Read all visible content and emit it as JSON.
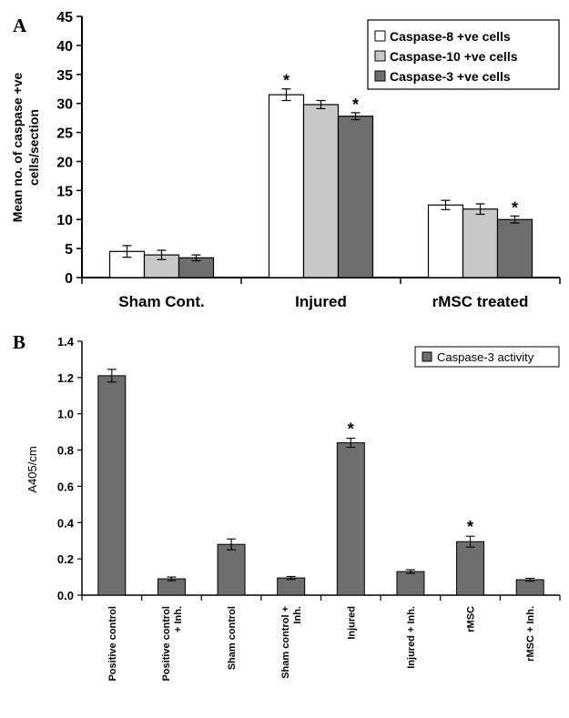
{
  "chart_data": [
    {
      "panel": "A",
      "type": "bar",
      "title": "",
      "ylabel": "Mean no. of caspase +ve cells/section",
      "ylabel_lines": [
        "Mean no. of caspase +ve",
        "cells/section"
      ],
      "xlabel": "",
      "ylim": [
        0,
        45
      ],
      "yticks": [
        "0",
        "5",
        "10",
        "15",
        "20",
        "25",
        "30",
        "35",
        "40",
        "45"
      ],
      "categories": [
        "Sham Cont.",
        "Injured",
        "rMSC treated"
      ],
      "legend_position": "top-right",
      "series": [
        {
          "name": "Caspase-8 +ve cells",
          "values": [
            4.5,
            31.5,
            12.5
          ],
          "errors": [
            1.0,
            1.0,
            0.8
          ],
          "color": "#ffffff"
        },
        {
          "name": "Caspase-10 +ve cells",
          "values": [
            3.9,
            29.8,
            11.8
          ],
          "errors": [
            0.8,
            0.7,
            0.9
          ],
          "color": "#c8c8c8"
        },
        {
          "name": "Caspase-3 +ve cells",
          "values": [
            3.4,
            27.8,
            10.0
          ],
          "errors": [
            0.5,
            0.6,
            0.6
          ],
          "color": "#6e6e6e"
        }
      ],
      "significance": [
        {
          "category": 1,
          "series": 0,
          "label": "*"
        },
        {
          "category": 1,
          "series": 2,
          "label": "*"
        },
        {
          "category": 2,
          "series": 2,
          "label": "*"
        }
      ]
    },
    {
      "panel": "B",
      "type": "bar",
      "title": "",
      "ylabel": "A405/cm",
      "xlabel": "",
      "ylim": [
        0,
        1.4
      ],
      "yticks": [
        "0.0",
        "0.2",
        "0.4",
        "0.6",
        "0.8",
        "1.0",
        "1.2",
        "1.4"
      ],
      "categories": [
        "Positive control",
        "Positive control + Inh.",
        "Sham control",
        "Sham control + Inh.",
        "Injured",
        "Injured + Inh.",
        "rMSC",
        "rMSC + Inh."
      ],
      "category_lines": [
        [
          "Positive control"
        ],
        [
          "Positive control",
          "+ Inh."
        ],
        [
          "Sham control"
        ],
        [
          "Sham control +",
          "Inh."
        ],
        [
          "Injured"
        ],
        [
          "Injured + Inh."
        ],
        [
          "rMSC"
        ],
        [
          "rMSC + Inh."
        ]
      ],
      "legend_position": "top-right",
      "series": [
        {
          "name": "Caspase-3 activity",
          "values": [
            1.21,
            0.09,
            0.28,
            0.095,
            0.84,
            0.13,
            0.295,
            0.085
          ],
          "errors": [
            0.035,
            0.01,
            0.03,
            0.008,
            0.025,
            0.01,
            0.03,
            0.008
          ],
          "color": "#6e6e6e"
        }
      ],
      "significance": [
        {
          "category": 4,
          "series": 0,
          "label": "*"
        },
        {
          "category": 6,
          "series": 0,
          "label": "*"
        }
      ]
    }
  ]
}
